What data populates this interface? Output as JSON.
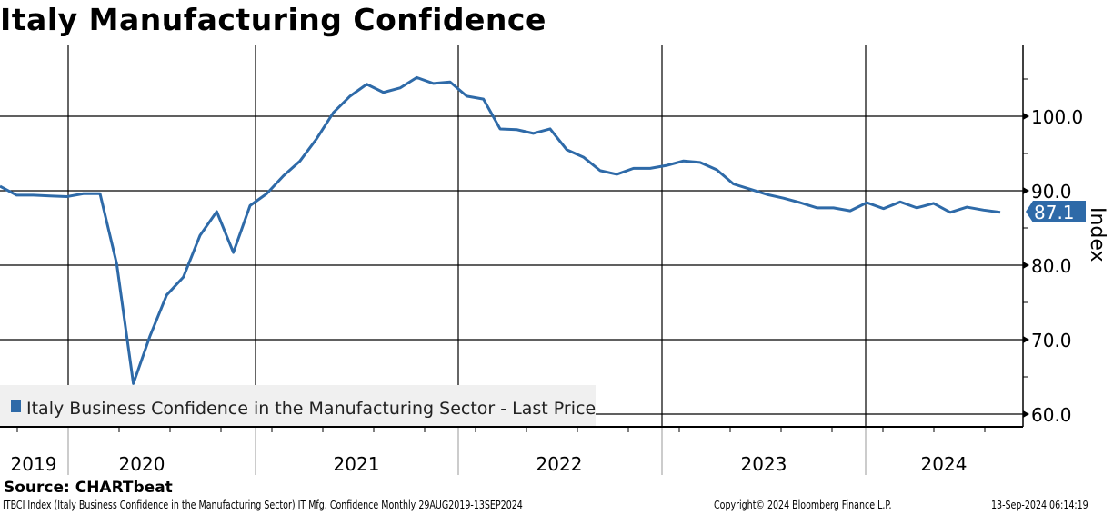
{
  "title": "Italy Manufacturing Confidence",
  "chart_data": {
    "type": "line",
    "title": "Italy Manufacturing Confidence",
    "ylabel": "Index",
    "ylim": [
      58,
      110
    ],
    "yticks": [
      "100.0",
      "90.0",
      "80.0",
      "70.0",
      "60.0"
    ],
    "ytick_values": [
      100,
      90,
      80,
      70,
      60
    ],
    "xticks": [
      "2019",
      "2020",
      "2021",
      "2022",
      "2023",
      "2024"
    ],
    "grid": true,
    "legend_position": "bottom-left",
    "x_start": "2019-08",
    "x_end": "2024-08",
    "frequency": "monthly",
    "series": [
      {
        "name": "Italy Business Confidence in the Manufacturing Sector - Last Price",
        "color": "#2e6aa8",
        "last_value_label": "87.1",
        "values": [
          90.6,
          89.4,
          89.4,
          89.3,
          89.2,
          89.6,
          89.6,
          80.2,
          64.1,
          70.5,
          76.0,
          78.4,
          84.0,
          87.2,
          81.7,
          88.0,
          89.6,
          92.0,
          94.0,
          97.0,
          100.5,
          102.7,
          104.3,
          103.2,
          103.8,
          105.2,
          104.4,
          104.6,
          102.7,
          102.3,
          98.3,
          98.2,
          97.7,
          98.3,
          95.5,
          94.5,
          92.7,
          92.2,
          93.0,
          93.0,
          93.4,
          94.0,
          93.8,
          92.8,
          90.9,
          90.2,
          89.5,
          89.0,
          88.4,
          87.7,
          87.7,
          87.3,
          88.4,
          87.6,
          88.5,
          87.7,
          88.3,
          87.1,
          87.8,
          87.4,
          87.1
        ]
      }
    ]
  },
  "footer": {
    "source": "Source: CHARTbeat",
    "description": "ITBCI Index (Italy Business Confidence in the Manufacturing Sector) IT Mfg. Confidence  Monthly 29AUG2019-13SEP2024",
    "copyright": "Copyright© 2024 Bloomberg Finance L.P.",
    "timestamp": "13-Sep-2024 06:14:19"
  }
}
